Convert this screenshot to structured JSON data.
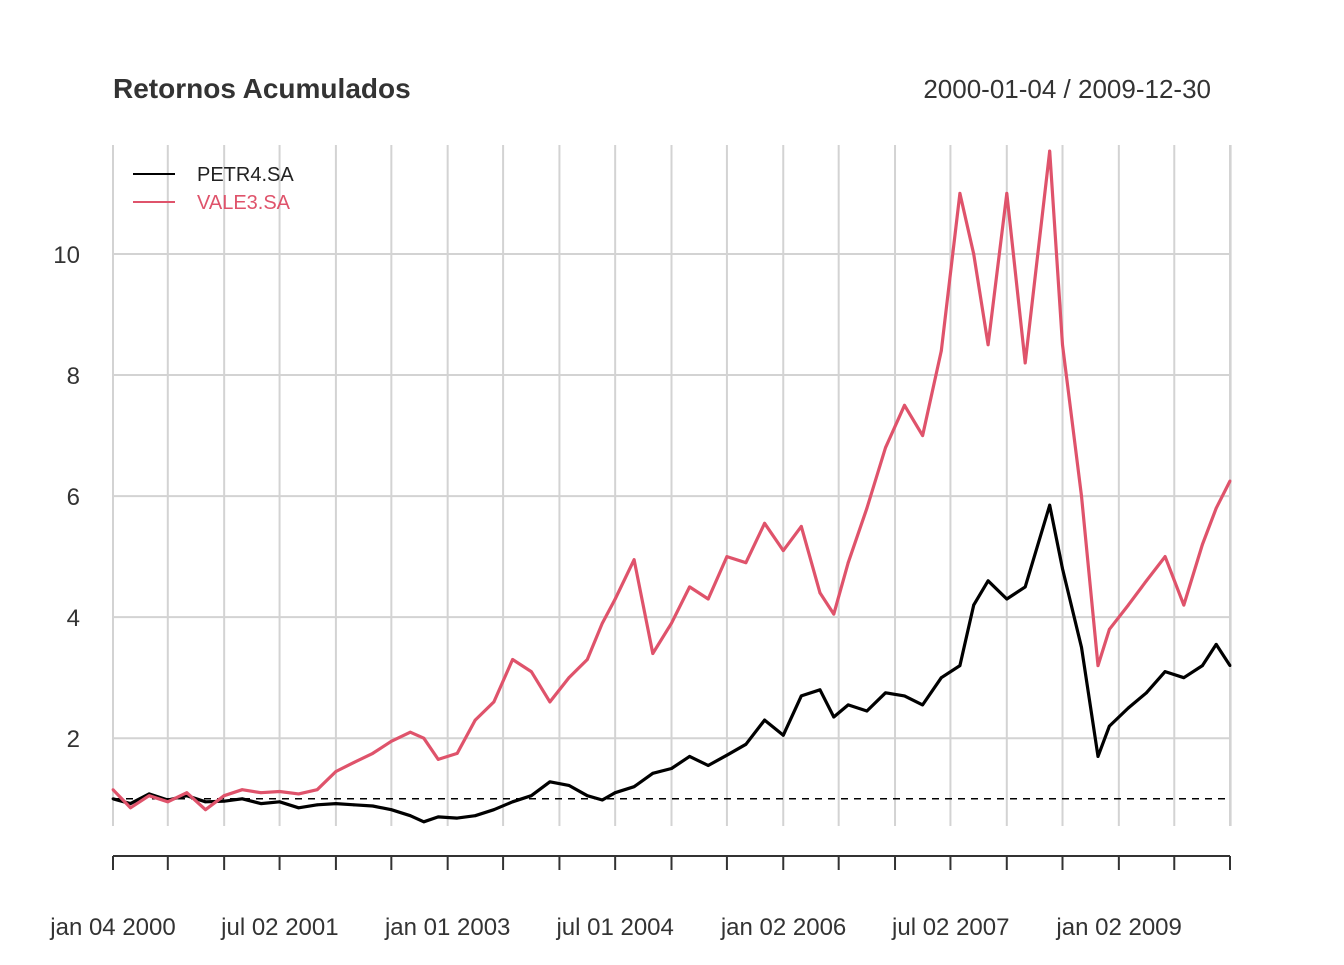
{
  "chart_data": {
    "type": "line",
    "title": "Retornos Acumulados",
    "date_range": "2000-01-04 / 2009-12-30",
    "xlabel": "",
    "ylabel": "",
    "x_start": "2000-01-04",
    "x_end": "2009-12-30",
    "ylim": [
      0.55,
      11.8
    ],
    "y_ticks": [
      2,
      4,
      6,
      8,
      10
    ],
    "x_tick_labels": [
      "jan 04 2000",
      "jul 02 2001",
      "jan 01 2003",
      "jul 01 2004",
      "jan 02 2006",
      "jul 02 2007",
      "jan 02 2009"
    ],
    "x_tick_dates": [
      "2000-01-04",
      "2001-07-02",
      "2003-01-01",
      "2004-07-01",
      "2006-01-02",
      "2007-07-02",
      "2009-01-02"
    ],
    "reference_line": 1,
    "grid": true,
    "legend_position": "top-left",
    "series": [
      {
        "name": "PETR4.SA",
        "color": "#000000",
        "x": [
          "2000-01-04",
          "2000-03-01",
          "2000-05-01",
          "2000-07-01",
          "2000-09-01",
          "2000-11-01",
          "2001-01-01",
          "2001-03-01",
          "2001-05-01",
          "2001-07-01",
          "2001-09-01",
          "2001-11-01",
          "2002-01-01",
          "2002-03-01",
          "2002-05-01",
          "2002-07-01",
          "2002-09-01",
          "2002-10-15",
          "2002-12-01",
          "2003-02-01",
          "2003-04-01",
          "2003-06-01",
          "2003-08-01",
          "2003-10-01",
          "2003-12-01",
          "2004-02-01",
          "2004-04-01",
          "2004-05-20",
          "2004-07-01",
          "2004-09-01",
          "2004-11-01",
          "2005-01-01",
          "2005-03-01",
          "2005-05-01",
          "2005-07-01",
          "2005-09-01",
          "2005-11-01",
          "2006-01-01",
          "2006-03-01",
          "2006-05-01",
          "2006-06-15",
          "2006-08-01",
          "2006-10-01",
          "2006-12-01",
          "2007-02-01",
          "2007-04-01",
          "2007-06-01",
          "2007-08-01",
          "2007-09-15",
          "2007-11-01",
          "2008-01-01",
          "2008-03-01",
          "2008-05-20",
          "2008-07-01",
          "2008-09-01",
          "2008-10-25",
          "2008-12-01",
          "2009-02-01",
          "2009-04-01",
          "2009-06-01",
          "2009-08-01",
          "2009-10-01",
          "2009-11-15",
          "2009-12-30"
        ],
        "values": [
          1.0,
          0.92,
          1.08,
          0.98,
          1.05,
          0.95,
          0.96,
          1.0,
          0.92,
          0.95,
          0.85,
          0.9,
          0.92,
          0.9,
          0.88,
          0.82,
          0.72,
          0.62,
          0.7,
          0.68,
          0.72,
          0.82,
          0.95,
          1.05,
          1.28,
          1.22,
          1.05,
          0.98,
          1.1,
          1.2,
          1.42,
          1.5,
          1.7,
          1.55,
          1.72,
          1.9,
          2.3,
          2.05,
          2.7,
          2.8,
          2.35,
          2.55,
          2.45,
          2.75,
          2.7,
          2.55,
          3.0,
          3.2,
          4.2,
          4.6,
          4.3,
          4.5,
          5.85,
          4.8,
          3.5,
          1.7,
          2.2,
          2.5,
          2.75,
          3.1,
          3.0,
          3.2,
          3.55,
          3.2
        ]
      },
      {
        "name": "VALE3.SA",
        "color": "#DF536B",
        "x": [
          "2000-01-04",
          "2000-03-01",
          "2000-05-01",
          "2000-07-01",
          "2000-09-01",
          "2000-11-01",
          "2001-01-01",
          "2001-03-01",
          "2001-05-01",
          "2001-07-01",
          "2001-09-01",
          "2001-11-01",
          "2002-01-01",
          "2002-03-01",
          "2002-05-01",
          "2002-07-01",
          "2002-09-01",
          "2002-10-15",
          "2002-12-01",
          "2003-02-01",
          "2003-04-01",
          "2003-06-01",
          "2003-08-01",
          "2003-10-01",
          "2003-12-01",
          "2004-02-01",
          "2004-04-01",
          "2004-05-20",
          "2004-07-01",
          "2004-09-01",
          "2004-11-01",
          "2005-01-01",
          "2005-03-01",
          "2005-05-01",
          "2005-07-01",
          "2005-09-01",
          "2005-11-01",
          "2006-01-01",
          "2006-03-01",
          "2006-05-01",
          "2006-06-15",
          "2006-08-01",
          "2006-10-01",
          "2006-12-01",
          "2007-02-01",
          "2007-04-01",
          "2007-06-01",
          "2007-08-01",
          "2007-09-15",
          "2007-11-01",
          "2008-01-01",
          "2008-03-01",
          "2008-05-20",
          "2008-07-01",
          "2008-09-01",
          "2008-10-25",
          "2008-12-01",
          "2009-02-01",
          "2009-04-01",
          "2009-06-01",
          "2009-08-01",
          "2009-10-01",
          "2009-11-15",
          "2009-12-30"
        ],
        "values": [
          1.15,
          0.85,
          1.05,
          0.95,
          1.1,
          0.82,
          1.05,
          1.15,
          1.1,
          1.12,
          1.08,
          1.15,
          1.45,
          1.6,
          1.75,
          1.95,
          2.1,
          2.0,
          1.65,
          1.75,
          2.3,
          2.6,
          3.3,
          3.1,
          2.6,
          3.0,
          3.3,
          3.9,
          4.3,
          4.95,
          3.4,
          3.9,
          4.5,
          4.3,
          5.0,
          4.9,
          5.55,
          5.1,
          5.5,
          4.4,
          4.05,
          4.9,
          5.8,
          6.8,
          7.5,
          7.0,
          8.4,
          11.0,
          10.0,
          8.5,
          11.0,
          8.2,
          11.7,
          8.5,
          6.0,
          3.2,
          3.8,
          4.2,
          4.6,
          5.0,
          4.2,
          5.2,
          5.8,
          6.25
        ]
      }
    ]
  }
}
